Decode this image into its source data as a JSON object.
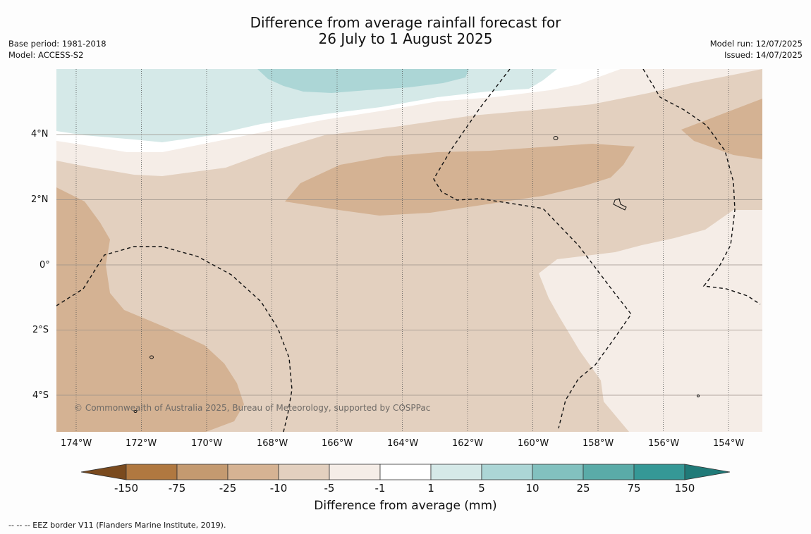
{
  "title": {
    "line1": "Difference from average rainfall forecast for",
    "line2": "26 July to 1 August 2025"
  },
  "meta_left": {
    "base_period": "Base period: 1981-2018",
    "model": "Model: ACCESS-S2"
  },
  "meta_right": {
    "model_run": "Model run: 12/07/2025",
    "issued": "Issued: 14/07/2025"
  },
  "copyright": "© Commonwealth of Australia 2025, Bureau of Meteorology, supported by COSPPac",
  "lat_labels": [
    "4°N",
    "2°N",
    "0°",
    "2°S",
    "4°S"
  ],
  "lon_labels": [
    "174°W",
    "172°W",
    "170°W",
    "168°W",
    "166°W",
    "164°W",
    "162°W",
    "160°W",
    "158°W",
    "156°W",
    "154°W"
  ],
  "colorbar": {
    "title": "Difference from average (mm)",
    "ticks": [
      "-150",
      "-75",
      "-25",
      "-10",
      "-5",
      "-1",
      "1",
      "5",
      "10",
      "25",
      "75",
      "150"
    ],
    "colors": [
      "#7a4a1e",
      "#b07840",
      "#c49a70",
      "#d6b393",
      "#e3d0bf",
      "#f5ede7",
      "#ffffff",
      "#d5e9e8",
      "#acd6d6",
      "#82c1bf",
      "#5aaba8",
      "#359896",
      "#207a78"
    ]
  },
  "footnote": "--  --  -- EEZ border V11 (Flanders Marine Institute, 2019)."
}
